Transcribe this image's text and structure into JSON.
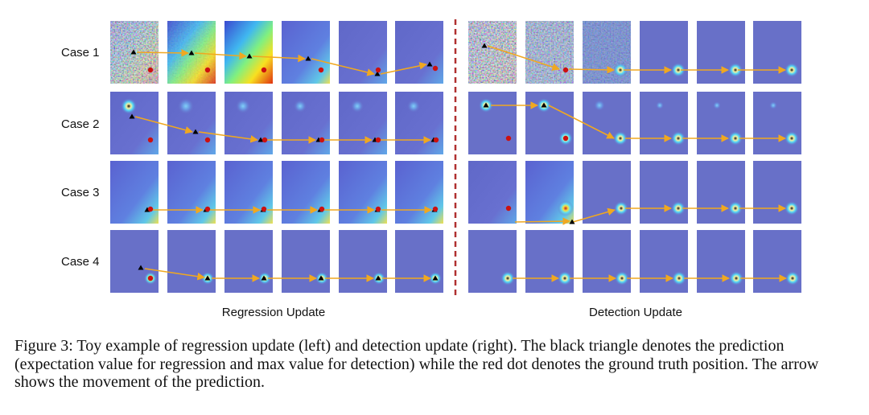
{
  "figure": {
    "row_labels": [
      "Case 1",
      "Case 2",
      "Case 3",
      "Case 4"
    ],
    "left_section_label": "Regression Update",
    "right_section_label": "Detection Update",
    "caption_prefix": "Figure 3:",
    "caption_text": "Toy example of regression update (left) and detection update (right). The black triangle denotes the prediction (expectation value for regression and max value for detection) while the red dot denotes the ground truth position. The arrow shows the movement of the prediction.",
    "colors": {
      "panel_base": "#6870c8",
      "arrow": "#f0a820",
      "divider": "#b03030",
      "ground_truth_dot": "#cc1010",
      "prediction_triangle": "#000000"
    }
  }
}
